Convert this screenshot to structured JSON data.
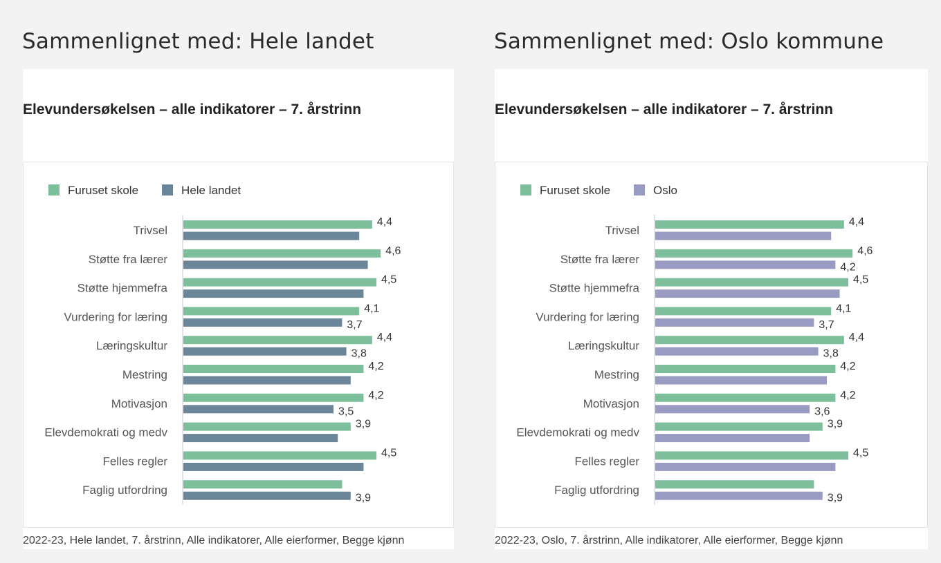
{
  "panels": [
    {
      "heading": "Sammenlignet med: Hele landet",
      "footer": "2022-23, Hele landet, 7. årstrinn, Alle indikatorer, Alle eierformer, Begge kjønn"
    },
    {
      "heading": "Sammenlignet med: Oslo kommune",
      "footer": "2022-23, Oslo, 7. årstrinn, Alle indikatorer, Alle eierformer, Begge kjønn"
    }
  ],
  "chart_data": [
    {
      "type": "bar",
      "orientation": "horizontal",
      "title": "Elevundersøkelsen – alle indikatorer – 7. årstrinn",
      "categories": [
        "Trivsel",
        "Støtte fra lærer",
        "Støtte hjemmefra",
        "Vurdering for læring",
        "Læringskultur",
        "Mestring",
        "Motivasjon",
        "Elevdemokrati og medv",
        "Felles regler",
        "Faglig utfordring"
      ],
      "series": [
        {
          "name": "Furuset skole",
          "color": "#7dbf9a",
          "values": [
            4.4,
            4.6,
            4.5,
            4.1,
            4.4,
            4.2,
            4.2,
            3.9,
            4.5,
            3.7
          ],
          "labels": [
            "4,4",
            "4,6",
            "4,5",
            "4,1",
            "4,4",
            "4,2",
            "4,2",
            "3,9",
            "4,5",
            null
          ]
        },
        {
          "name": "Hele landet",
          "color": "#6b8599",
          "values": [
            4.1,
            4.3,
            4.2,
            3.7,
            3.8,
            3.9,
            3.5,
            3.6,
            4.2,
            3.9
          ],
          "labels": [
            null,
            null,
            null,
            "3,7",
            "3,8",
            null,
            "3,5",
            null,
            null,
            "3,9"
          ]
        }
      ],
      "xlim": [
        0,
        5
      ],
      "grid": false,
      "legend": "top-left"
    },
    {
      "type": "bar",
      "orientation": "horizontal",
      "title": "Elevundersøkelsen – alle indikatorer – 7. årstrinn",
      "categories": [
        "Trivsel",
        "Støtte fra lærer",
        "Støtte hjemmefra",
        "Vurdering for læring",
        "Læringskultur",
        "Mestring",
        "Motivasjon",
        "Elevdemokrati og medv",
        "Felles regler",
        "Faglig utfordring"
      ],
      "series": [
        {
          "name": "Furuset skole",
          "color": "#7dbf9a",
          "values": [
            4.4,
            4.6,
            4.5,
            4.1,
            4.4,
            4.2,
            4.2,
            3.9,
            4.5,
            3.7
          ],
          "labels": [
            "4,4",
            "4,6",
            "4,5",
            "4,1",
            "4,4",
            "4,2",
            "4,2",
            "3,9",
            "4,5",
            null
          ]
        },
        {
          "name": "Oslo",
          "color": "#9a9bc2",
          "values": [
            4.1,
            4.2,
            4.3,
            3.7,
            3.8,
            4.0,
            3.6,
            3.6,
            4.2,
            3.9
          ],
          "labels": [
            null,
            "4,2",
            null,
            "3,7",
            "3,8",
            null,
            "3,6",
            null,
            null,
            "3,9"
          ]
        }
      ],
      "xlim": [
        0,
        5
      ],
      "grid": false,
      "legend": "top-left"
    }
  ]
}
